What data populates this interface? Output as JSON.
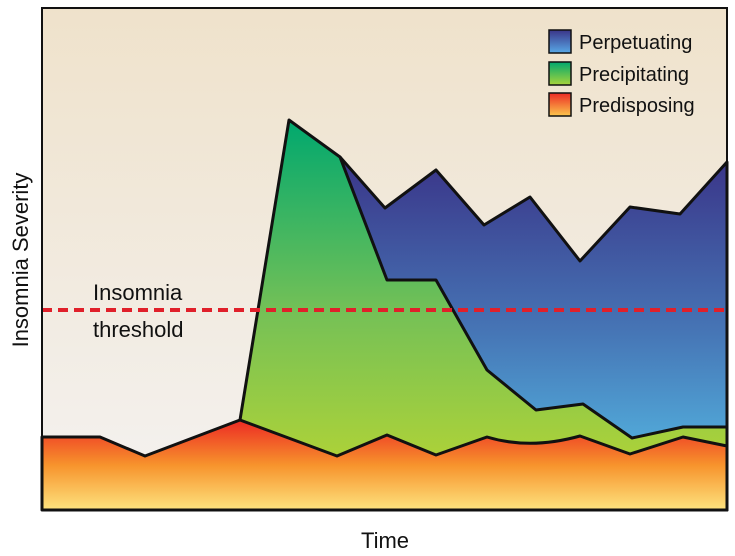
{
  "axes": {
    "y_label": "Insomnia Severity",
    "x_label": "Time"
  },
  "legend": {
    "items": [
      {
        "label": "Perpetuating"
      },
      {
        "label": "Precipitating"
      },
      {
        "label": "Predisposing"
      }
    ]
  },
  "threshold": {
    "lines": [
      "Insomnia",
      "threshold"
    ]
  }
}
